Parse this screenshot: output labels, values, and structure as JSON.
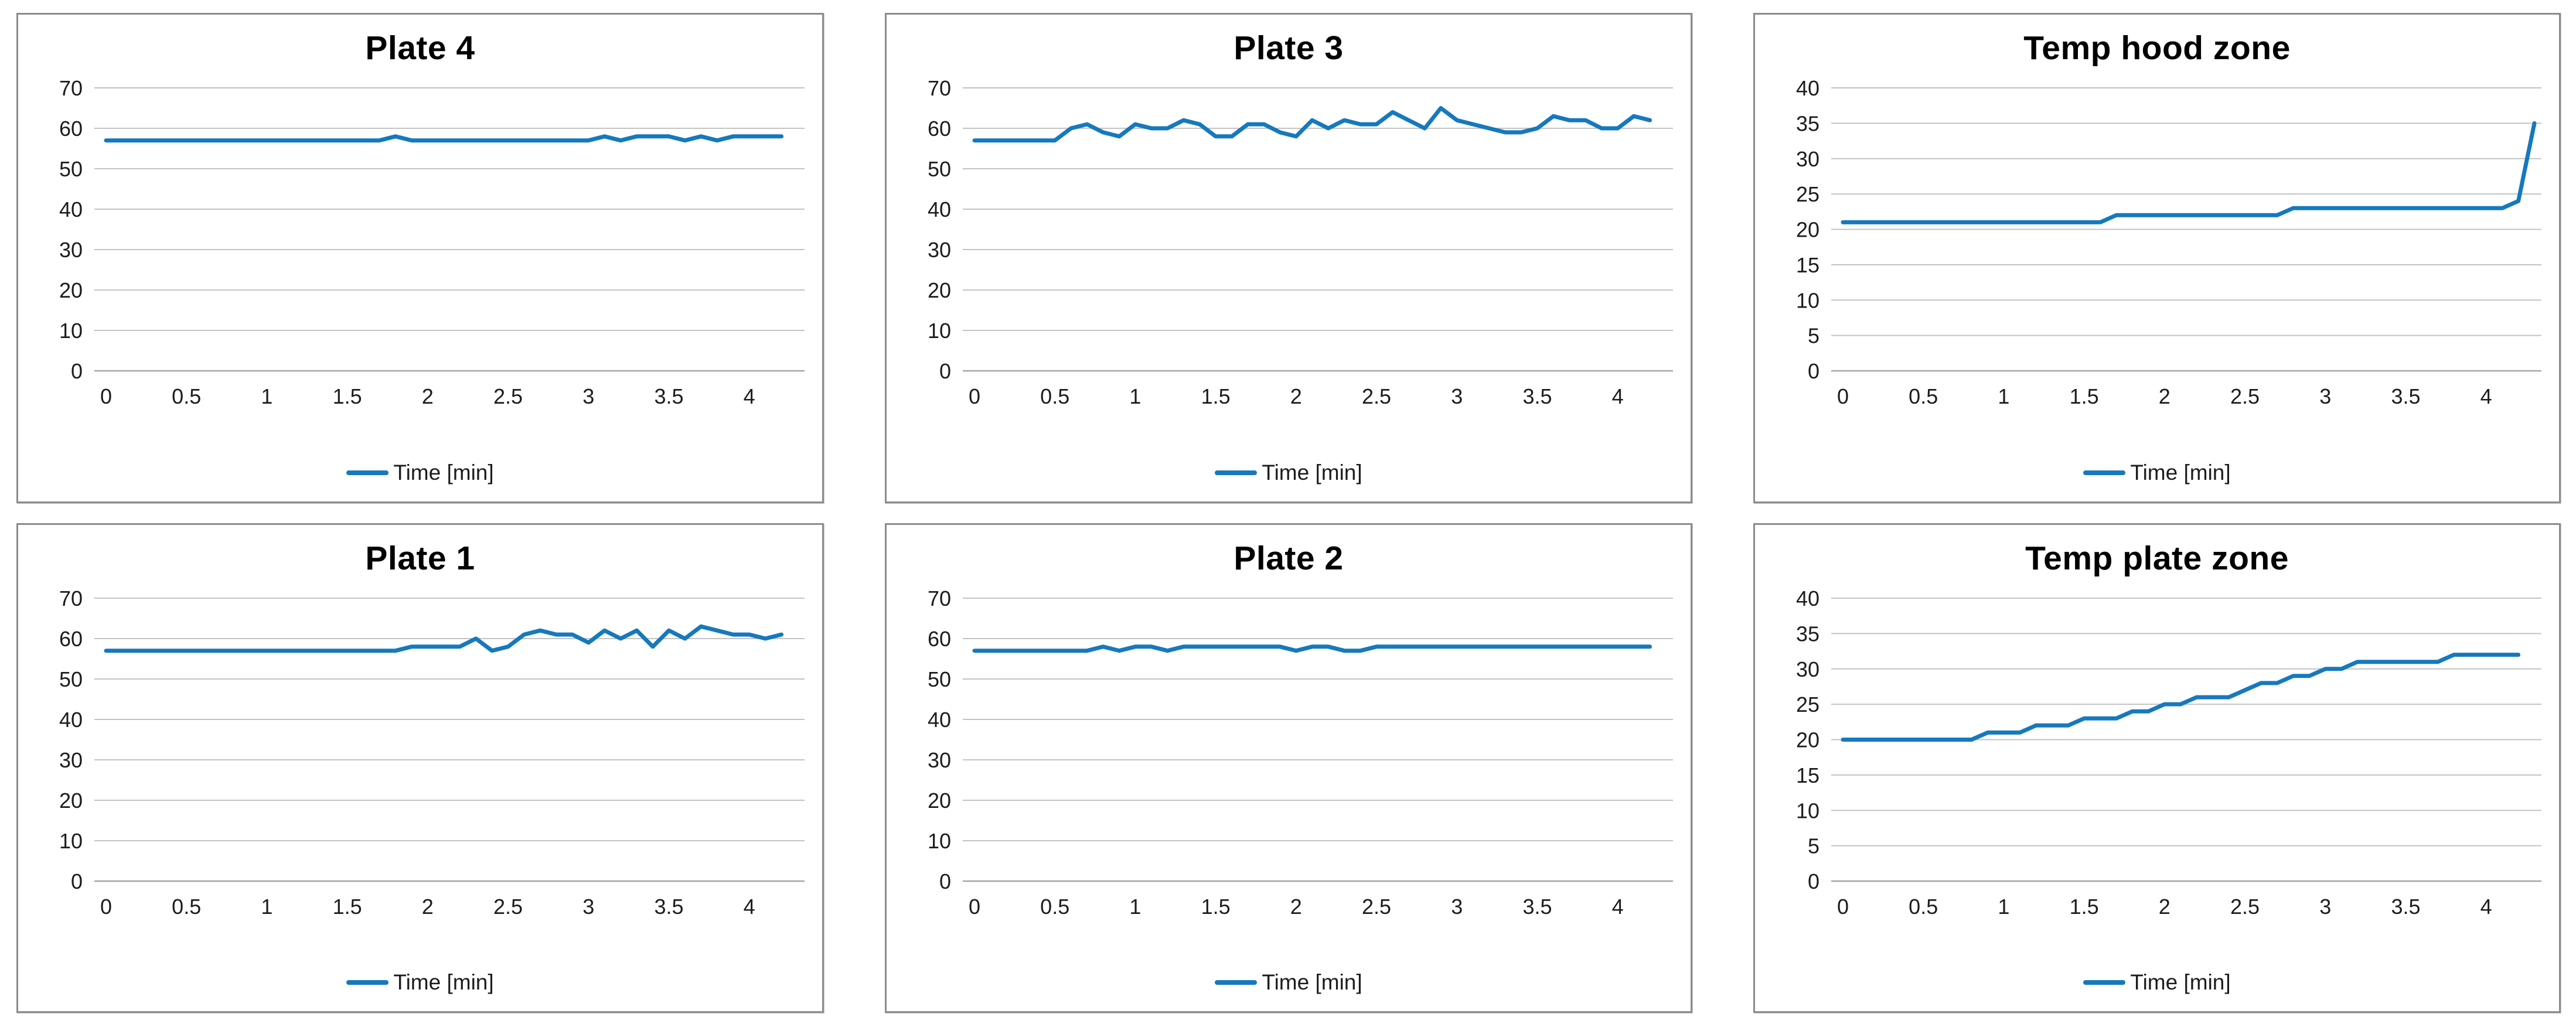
{
  "legend_label": "Time [min]",
  "line_color": "#1679bd",
  "chart_data": [
    {
      "type": "line",
      "title": "Plate 4",
      "legend": "Time [min]",
      "legend_position": "bottom",
      "color": "#1679bd",
      "grid": true,
      "xlim": [
        0,
        4.3
      ],
      "ylim": [
        0,
        70
      ],
      "yticks": [
        0,
        10,
        20,
        30,
        40,
        50,
        60,
        70
      ],
      "xticks": [
        "0",
        "0.5",
        "1",
        "1.5",
        "2",
        "2.5",
        "3",
        "3.5",
        "4"
      ],
      "x_start": 0,
      "x_step": 0.1,
      "values": [
        57,
        57,
        57,
        57,
        57,
        57,
        57,
        57,
        57,
        57,
        57,
        57,
        57,
        57,
        57,
        57,
        57,
        57,
        58,
        57,
        57,
        57,
        57,
        57,
        57,
        57,
        57,
        57,
        57,
        57,
        57,
        58,
        57,
        58,
        58,
        58,
        57,
        58,
        57,
        58,
        58,
        58,
        58
      ]
    },
    {
      "type": "line",
      "title": "Plate 3",
      "legend": "Time [min]",
      "legend_position": "bottom",
      "color": "#1679bd",
      "grid": true,
      "xlim": [
        0,
        4.3
      ],
      "ylim": [
        0,
        70
      ],
      "yticks": [
        0,
        10,
        20,
        30,
        40,
        50,
        60,
        70
      ],
      "xticks": [
        "0",
        "0.5",
        "1",
        "1.5",
        "2",
        "2.5",
        "3",
        "3.5",
        "4"
      ],
      "x_start": 0,
      "x_step": 0.1,
      "values": [
        57,
        57,
        57,
        57,
        57,
        57,
        60,
        61,
        59,
        58,
        61,
        60,
        60,
        62,
        61,
        58,
        58,
        61,
        61,
        59,
        58,
        62,
        60,
        62,
        61,
        61,
        64,
        62,
        60,
        65,
        62,
        61,
        60,
        59,
        59,
        60,
        63,
        62,
        62,
        60,
        60,
        63,
        62
      ]
    },
    {
      "type": "line",
      "title": "Temp hood zone",
      "legend": "Time [min]",
      "legend_position": "bottom",
      "color": "#1679bd",
      "grid": true,
      "xlim": [
        0,
        4.3
      ],
      "ylim": [
        0,
        40
      ],
      "yticks": [
        0,
        5,
        10,
        15,
        20,
        25,
        30,
        35,
        40
      ],
      "xticks": [
        "0",
        "0.5",
        "1",
        "1.5",
        "2",
        "2.5",
        "3",
        "3.5",
        "4"
      ],
      "x_start": 0,
      "x_step": 0.1,
      "values": [
        21,
        21,
        21,
        21,
        21,
        21,
        21,
        21,
        21,
        21,
        21,
        21,
        21,
        21,
        21,
        21,
        21,
        22,
        22,
        22,
        22,
        22,
        22,
        22,
        22,
        22,
        22,
        22,
        23,
        23,
        23,
        23,
        23,
        23,
        23,
        23,
        23,
        23,
        23,
        23,
        23,
        23,
        24,
        35
      ]
    },
    {
      "type": "line",
      "title": "Plate 1",
      "legend": "Time [min]",
      "legend_position": "bottom",
      "color": "#1679bd",
      "grid": true,
      "xlim": [
        0,
        4.3
      ],
      "ylim": [
        0,
        70
      ],
      "yticks": [
        0,
        10,
        20,
        30,
        40,
        50,
        60,
        70
      ],
      "xticks": [
        "0",
        "0.5",
        "1",
        "1.5",
        "2",
        "2.5",
        "3",
        "3.5",
        "4"
      ],
      "x_start": 0,
      "x_step": 0.1,
      "values": [
        57,
        57,
        57,
        57,
        57,
        57,
        57,
        57,
        57,
        57,
        57,
        57,
        57,
        57,
        57,
        57,
        57,
        57,
        57,
        58,
        58,
        58,
        58,
        60,
        57,
        58,
        61,
        62,
        61,
        61,
        59,
        62,
        60,
        62,
        58,
        62,
        60,
        63,
        62,
        61,
        61,
        60,
        61
      ]
    },
    {
      "type": "line",
      "title": "Plate 2",
      "legend": "Time [min]",
      "legend_position": "bottom",
      "color": "#1679bd",
      "grid": true,
      "xlim": [
        0,
        4.3
      ],
      "ylim": [
        0,
        70
      ],
      "yticks": [
        0,
        10,
        20,
        30,
        40,
        50,
        60,
        70
      ],
      "xticks": [
        "0",
        "0.5",
        "1",
        "1.5",
        "2",
        "2.5",
        "3",
        "3.5",
        "4"
      ],
      "x_start": 0,
      "x_step": 0.1,
      "values": [
        57,
        57,
        57,
        57,
        57,
        57,
        57,
        57,
        58,
        57,
        58,
        58,
        57,
        58,
        58,
        58,
        58,
        58,
        58,
        58,
        57,
        58,
        58,
        57,
        57,
        58,
        58,
        58,
        58,
        58,
        58,
        58,
        58,
        58,
        58,
        58,
        58,
        58,
        58,
        58,
        58,
        58,
        58
      ]
    },
    {
      "type": "line",
      "title": "Temp plate zone",
      "legend": "Time [min]",
      "legend_position": "bottom",
      "color": "#1679bd",
      "grid": true,
      "xlim": [
        0,
        4.3
      ],
      "ylim": [
        0,
        40
      ],
      "yticks": [
        0,
        5,
        10,
        15,
        20,
        25,
        30,
        35,
        40
      ],
      "xticks": [
        "0",
        "0.5",
        "1",
        "1.5",
        "2",
        "2.5",
        "3",
        "3.5",
        "4"
      ],
      "x_start": 0,
      "x_step": 0.1,
      "values": [
        20,
        20,
        20,
        20,
        20,
        20,
        20,
        20,
        20,
        21,
        21,
        21,
        22,
        22,
        22,
        23,
        23,
        23,
        24,
        24,
        25,
        25,
        26,
        26,
        26,
        27,
        28,
        28,
        29,
        29,
        30,
        30,
        31,
        31,
        31,
        31,
        31,
        31,
        32,
        32,
        32,
        32,
        32
      ]
    }
  ]
}
